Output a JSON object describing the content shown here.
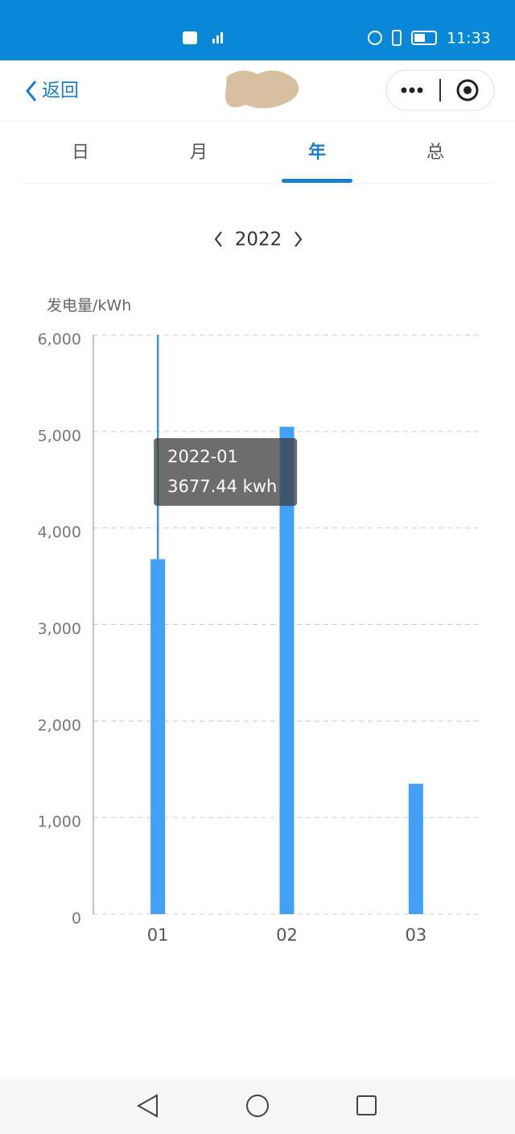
{
  "status_bar": {
    "time": "11:33"
  },
  "nav": {
    "back": "返回"
  },
  "tabs": [
    "日",
    "月",
    "年",
    "总"
  ],
  "active_tab": 2,
  "year": "2022",
  "chart_data": {
    "type": "bar",
    "y_label": "发电量/kWh",
    "categories": [
      "01",
      "02",
      "03"
    ],
    "values": [
      3677.44,
      5050,
      1350
    ],
    "color": "#42a0f5",
    "ylim": [
      0,
      6000
    ],
    "yticks": [
      0,
      {
        "value": 1000,
        "label": "1,000"
      },
      {
        "value": 2000,
        "label": "2,000"
      },
      {
        "value": 3000,
        "label": "3,000"
      },
      {
        "value": 4000,
        "label": "4,000"
      },
      {
        "value": 5000,
        "label": "5,000"
      },
      {
        "value": 6000,
        "label": "6,000"
      }
    ],
    "grid": true,
    "tooltip": {
      "index": 0,
      "title": "2022-01",
      "label": "3677.44 kwh"
    }
  }
}
